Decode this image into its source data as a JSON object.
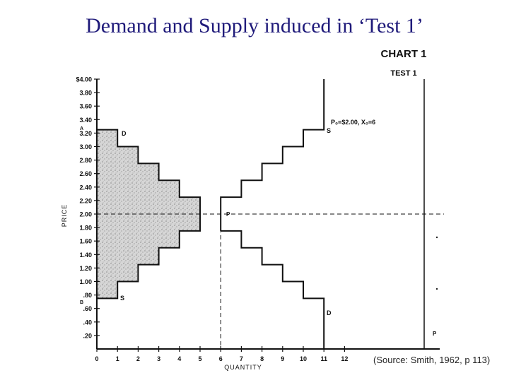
{
  "slide": {
    "title": "Demand and Supply induced in ‘Test 1’",
    "source": "(Source: Smith, 1962, p 113)"
  },
  "chart_data": {
    "type": "line",
    "header": "CHART 1",
    "subheader": "TEST 1",
    "xlabel": "QUANTITY",
    "ylabel": "PRICE",
    "xlim": [
      0,
      16
    ],
    "ylim": [
      0,
      4.0
    ],
    "x_ticks": [
      0,
      1,
      2,
      3,
      4,
      5,
      6,
      7,
      8,
      9,
      10,
      11,
      12
    ],
    "x_tick_labels": [
      "0",
      "1",
      "2",
      "3",
      "4",
      "5",
      "6",
      "7",
      "8",
      "9",
      "10",
      "11",
      "12"
    ],
    "y_ticks": [
      0.2,
      0.4,
      0.6,
      0.8,
      1.0,
      1.2,
      1.4,
      1.6,
      1.8,
      2.0,
      2.2,
      2.4,
      2.6,
      2.8,
      3.0,
      3.2,
      3.4,
      3.6,
      3.8,
      4.0
    ],
    "y_tick_labels": [
      ".20",
      ".40",
      ".60",
      ".80",
      "1.00",
      "1.20",
      "1.40",
      "1.60",
      "1.80",
      "2.00",
      "2.20",
      "2.40",
      "2.60",
      "2.80",
      "3.00",
      "3.20",
      "3.40",
      "3.60",
      "3.80",
      "$4.00"
    ],
    "annotation": "P₀=$2.00, X₀=6",
    "series": [
      {
        "label": "D",
        "color": "#111111",
        "points": [
          [
            0,
            3.25
          ],
          [
            1,
            3.25
          ],
          [
            1,
            3.0
          ],
          [
            2,
            3.0
          ],
          [
            2,
            2.75
          ],
          [
            3,
            2.75
          ],
          [
            3,
            2.5
          ],
          [
            4,
            2.5
          ],
          [
            4,
            2.25
          ],
          [
            5,
            2.25
          ],
          [
            5,
            1.75
          ],
          [
            4,
            1.75
          ],
          [
            4,
            1.5
          ],
          [
            3,
            1.5
          ],
          [
            3,
            1.25
          ],
          [
            2,
            1.25
          ],
          [
            2,
            1.0
          ],
          [
            1,
            1.0
          ],
          [
            1,
            0.75
          ],
          [
            0,
            0.75
          ]
        ]
      },
      {
        "label": "S",
        "color": "#111111",
        "points": [
          [
            6,
            1.75
          ],
          [
            6,
            2.25
          ],
          [
            7,
            2.25
          ],
          [
            7,
            2.5
          ],
          [
            8,
            2.5
          ],
          [
            8,
            2.75
          ],
          [
            9,
            2.75
          ],
          [
            9,
            3.0
          ],
          [
            10,
            3.0
          ],
          [
            10,
            3.25
          ],
          [
            11,
            3.25
          ],
          [
            11,
            4.0
          ]
        ]
      },
      {
        "label": "D",
        "color": "#111111",
        "points": [
          [
            6,
            1.75
          ],
          [
            7,
            1.75
          ],
          [
            7,
            1.5
          ],
          [
            8,
            1.5
          ],
          [
            8,
            1.25
          ],
          [
            9,
            1.25
          ],
          [
            9,
            1.0
          ],
          [
            10,
            1.0
          ],
          [
            10,
            0.75
          ],
          [
            11,
            0.75
          ],
          [
            11,
            0
          ]
        ]
      }
    ],
    "labels": {
      "demand_top": "D",
      "demand_bottom_s": "S",
      "supply_s": "S",
      "demand_d": "D",
      "equilibrium_p": "P",
      "axis_a": "A",
      "axis_b": "B",
      "right_p": "P"
    },
    "equilibrium": {
      "price": 2.0,
      "quantity": 6
    }
  }
}
